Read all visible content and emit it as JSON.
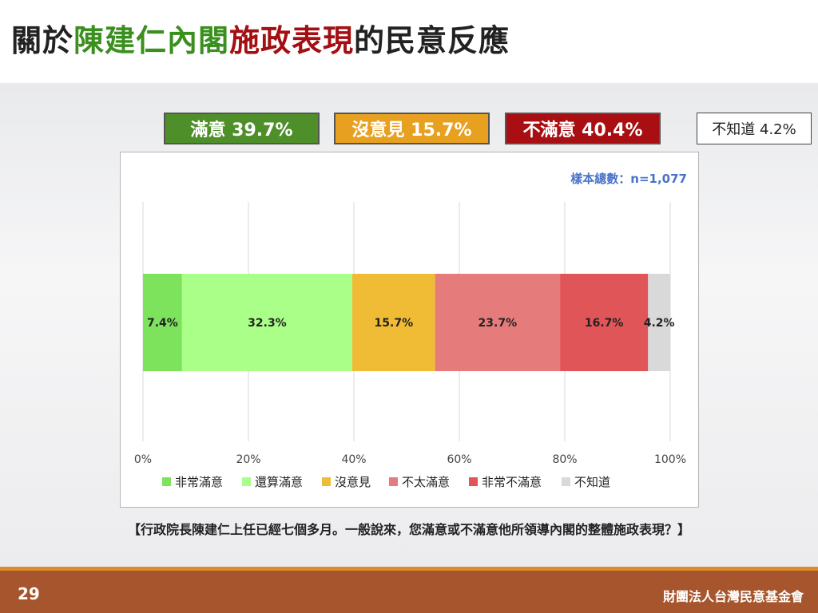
{
  "title": {
    "part1": "關於",
    "part2": "陳建仁內閣",
    "part3": "施政表現",
    "part4": "的民意反應"
  },
  "summary": {
    "satisfied": "滿意 39.7%",
    "no_opinion": "沒意見 15.7%",
    "dissatisfied": "不滿意 40.4%",
    "unknown": "不知道 4.2%"
  },
  "colors": {
    "satisfied_box": "#4e8f2a",
    "no_opinion_box": "#e8a020",
    "dissatisfied_box": "#a90e12"
  },
  "sample_note": "樣本總數：n=1,077",
  "question": "【行政院長陳建仁上任已經七個多月。一般說來，您滿意或不滿意他所領導內閣的整體施政表現？】",
  "footer": {
    "page_number": "29",
    "org": "財團法人台灣民意基金會"
  },
  "chart_data": {
    "type": "bar",
    "orientation": "horizontal-stacked",
    "series": [
      {
        "name": "非常滿意",
        "value": 7.4,
        "label": "7.4%",
        "color": "#7ee35c"
      },
      {
        "name": "還算滿意",
        "value": 32.3,
        "label": "32.3%",
        "color": "#aaff88"
      },
      {
        "name": "沒意見",
        "value": 15.7,
        "label": "15.7%",
        "color": "#f0bc35"
      },
      {
        "name": "不太滿意",
        "value": 23.7,
        "label": "23.7%",
        "color": "#e57b7b"
      },
      {
        "name": "非常不滿意",
        "value": 16.7,
        "label": "16.7%",
        "color": "#e05558"
      },
      {
        "name": "不知道",
        "value": 4.2,
        "label": "4.2%",
        "color": "#d9d9d9"
      }
    ],
    "xlim": [
      0,
      100
    ],
    "x_ticks": [
      "0%",
      "20%",
      "40%",
      "60%",
      "80%",
      "100%"
    ],
    "grid": true,
    "legend_position": "bottom"
  }
}
